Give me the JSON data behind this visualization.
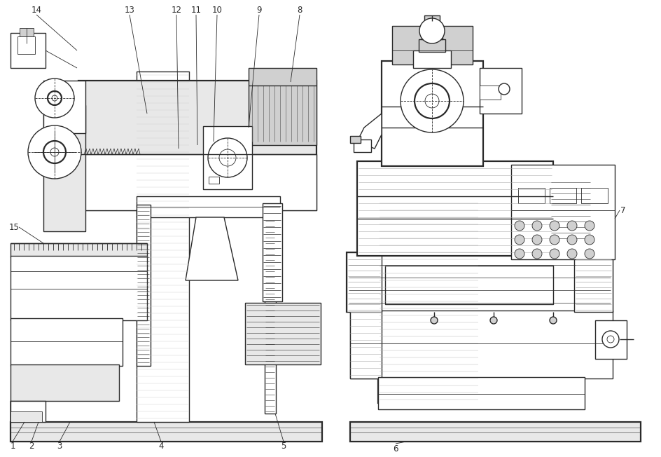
{
  "background_color": "#ffffff",
  "line_color": "#2a2a2a",
  "fig_width": 9.45,
  "fig_height": 6.52,
  "dpi": 100,
  "lw_thick": 1.6,
  "lw_main": 1.0,
  "lw_thin": 0.6,
  "lw_hair": 0.4,
  "gray_light": "#e8e8e8",
  "gray_mid": "#d0d0d0",
  "gray_dark": "#b0b0b0",
  "white": "#ffffff",
  "label_fontsize": 8.5
}
